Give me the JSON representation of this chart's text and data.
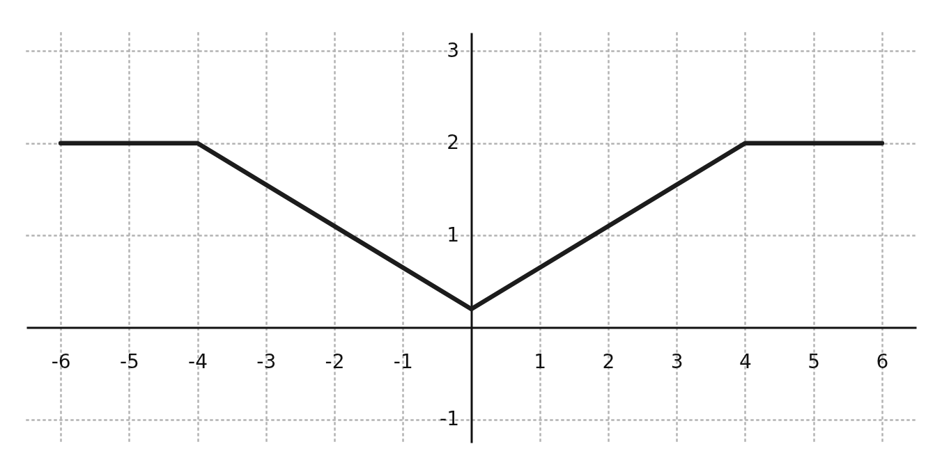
{
  "chart_data": {
    "type": "line",
    "x": [
      -6,
      -4,
      0,
      4,
      6
    ],
    "series": [
      {
        "color": "#1c1c1c",
        "values": [
          2,
          2,
          0.2,
          2,
          2
        ]
      }
    ],
    "xlim": [
      -6.5,
      6.5
    ],
    "ylim": [
      -1.25,
      3.2
    ],
    "xticks": [
      -6,
      -5,
      -4,
      -3,
      -2,
      -1,
      1,
      2,
      3,
      4,
      5,
      6
    ],
    "yticks": [
      -1,
      1,
      2,
      3
    ],
    "grid": true,
    "line_style": "solid"
  }
}
